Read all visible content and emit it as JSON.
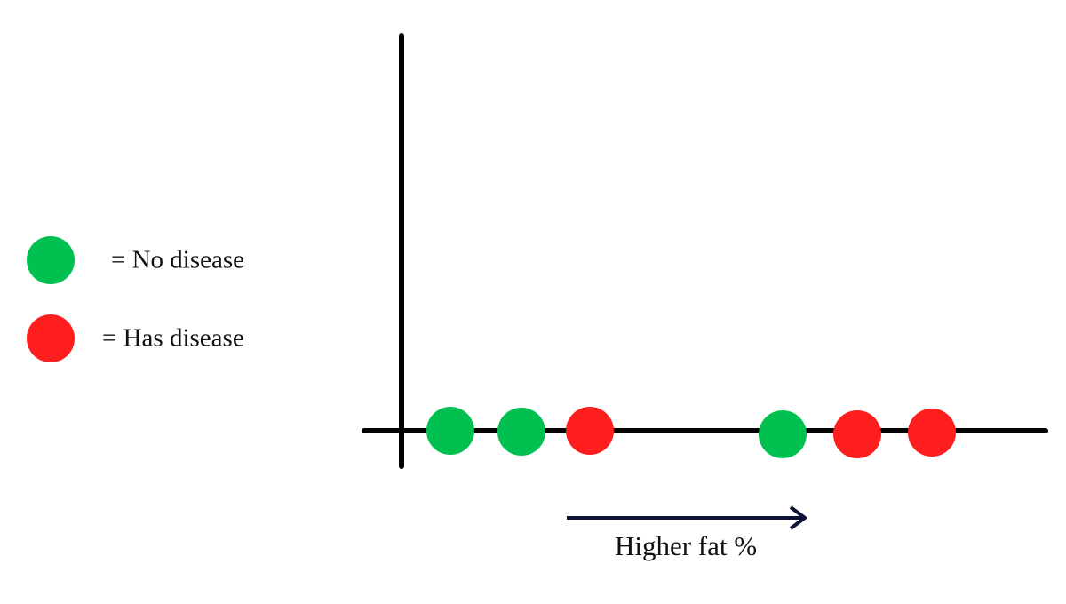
{
  "legend": [
    {
      "label": "= No disease",
      "color": "#00c050"
    },
    {
      "label": "= Has disease",
      "color": "#ff1e1e"
    }
  ],
  "axis_label": "Higher fat %"
}
